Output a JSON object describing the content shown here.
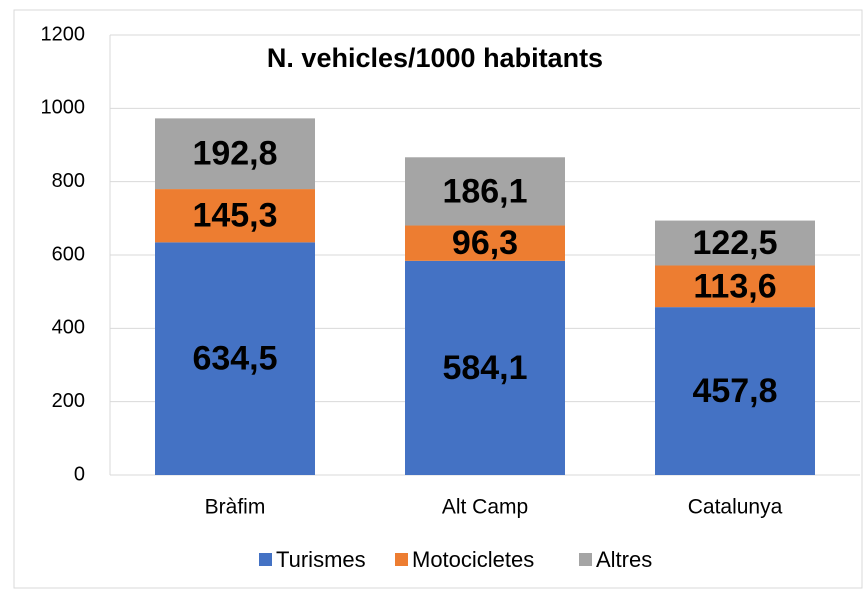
{
  "chart_data": {
    "type": "stacked_bar",
    "title": "N. vehicles/1000 habitants",
    "categories": [
      "Bràfim",
      "Alt Camp",
      "Catalunya"
    ],
    "series": [
      {
        "name": "Turismes",
        "color": "#4472c4",
        "values": [
          634.5,
          584.1,
          457.8
        ],
        "value_labels": [
          "634,5",
          "584,1",
          "457,8"
        ]
      },
      {
        "name": "Motocicletes",
        "color": "#ed7d31",
        "values": [
          145.3,
          96.3,
          113.6
        ],
        "value_labels": [
          "145,3",
          "96,3",
          "113,6"
        ]
      },
      {
        "name": "Altres",
        "color": "#a5a5a5",
        "values": [
          192.8,
          186.1,
          122.5
        ],
        "value_labels": [
          "192,8",
          "186,1",
          "122,5"
        ]
      }
    ],
    "ylim": [
      0,
      1200
    ],
    "yticks": [
      0,
      200,
      400,
      600,
      800,
      1000,
      1200
    ],
    "grid": true,
    "legend": "bottom"
  }
}
